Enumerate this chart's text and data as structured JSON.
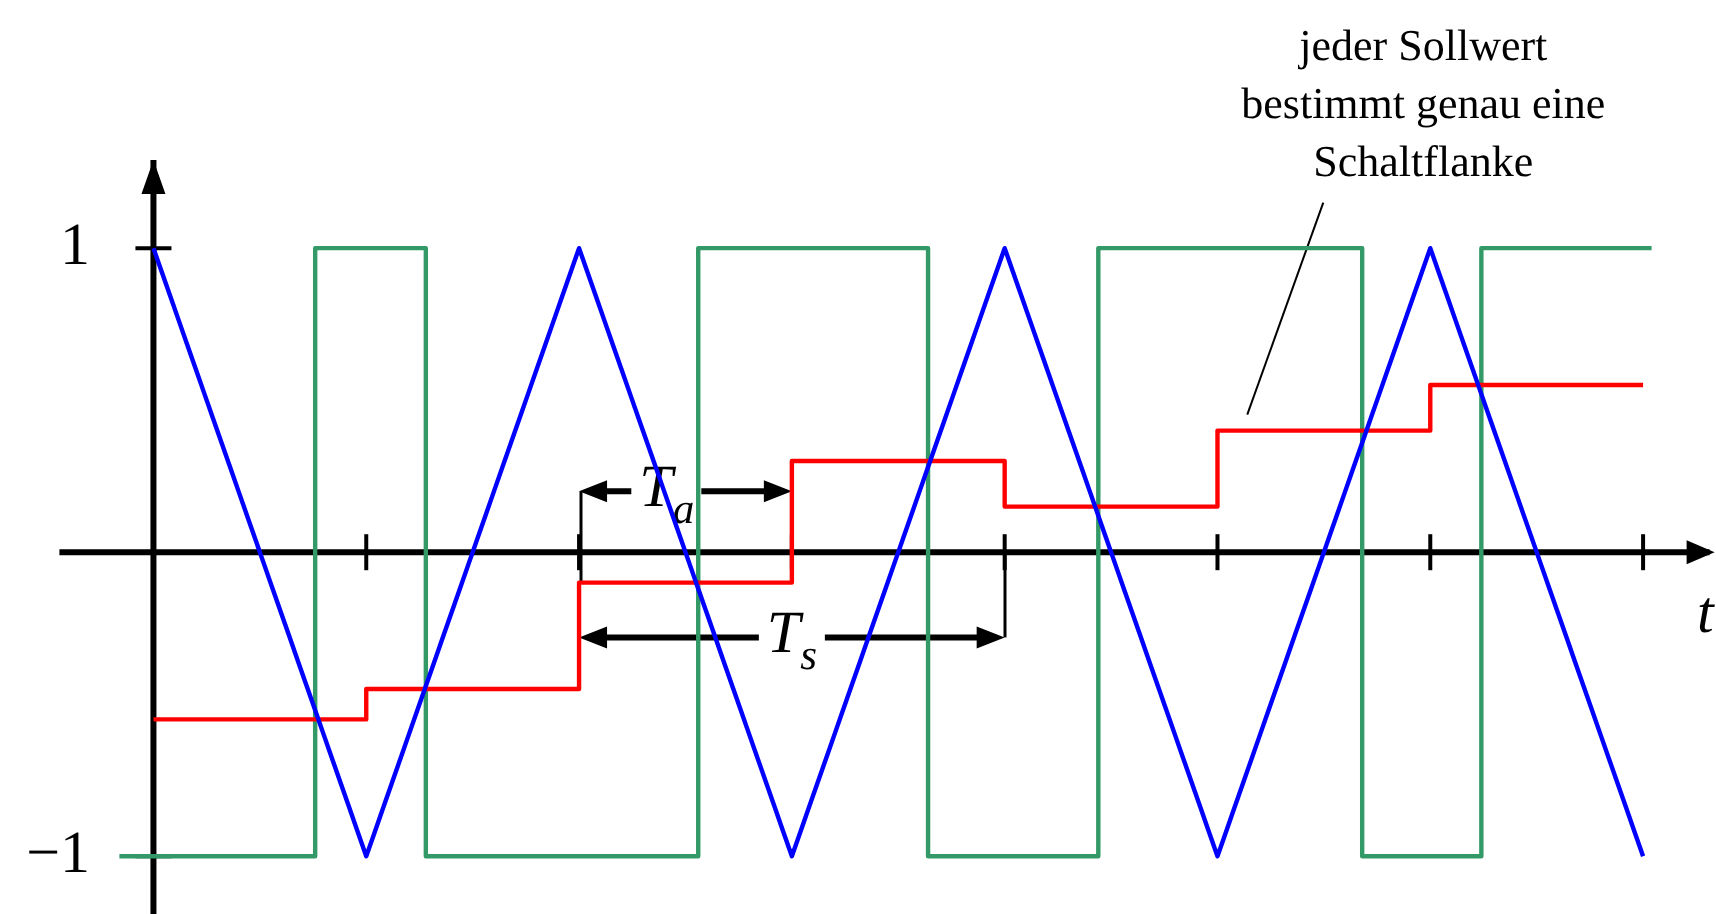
{
  "chart_data": {
    "type": "line",
    "xlabel": "t",
    "categories": [
      null,
      null,
      null,
      null,
      null,
      null,
      null,
      null,
      null,
      null,
      null,
      null,
      null,
      null,
      null,
      null,
      null,
      null,
      null,
      null,
      null,
      null,
      null,
      null,
      null,
      null,
      null,
      null,
      null,
      null,
      null,
      null,
      null,
      null,
      null,
      null,
      null,
      null,
      null,
      null,
      null,
      null,
      null,
      null,
      null,
      null,
      null,
      null,
      null,
      null,
      null,
      null,
      null,
      null,
      null,
      null,
      null,
      null,
      null,
      null,
      null,
      null,
      null,
      null,
      null,
      null,
      null,
      null,
      null,
      null,
      null,
      null,
      null,
      null,
      null,
      null,
      null,
      null,
      null,
      null,
      null,
      null,
      null,
      null,
      null,
      null,
      null,
      null,
      null,
      null,
      null,
      null,
      null,
      null,
      null,
      null,
      null,
      null,
      null,
      null,
      null,
      null,
      null,
      null,
      null,
      null,
      null,
      null,
      null,
      null,
      null,
      null,
      null,
      null,
      null,
      null,
      null,
      null,
      null,
      null,
      null,
      null,
      null,
      null,
      null,
      null,
      null,
      null,
      null,
      null,
      null,
      null,
      null,
      null,
      null,
      null,
      null,
      null,
      null,
      null,
      null,
      null,
      null,
      null,
      null,
      null,
      null,
      null,
      null,
      null,
      null,
      null,
      null,
      null,
      null,
      null,
      null,
      null,
      null,
      null,
      null,
      null,
      null,
      null,
      null,
      null,
      null,
      null,
      null,
      null,
      null,
      null,
      null,
      null,
      null,
      null,
      null,
      null,
      null,
      null,
      null
    ],
    "ylim": [
      -1.19,
      1.29
    ],
    "yticks": [
      1,
      {
        "value": -1,
        "label": "−1"
      }
    ],
    "series": [
      {
        "type": "line",
        "color": "#0000ff",
        "values": [
          null,
          null,
          null,
          null,
          1,
          0.92,
          0.84,
          0.76,
          0.68,
          0.6,
          0.52,
          0.44,
          0.36,
          0.28,
          0.2,
          0.12,
          0.04,
          -0.04,
          -0.12,
          -0.2,
          -0.28,
          -0.36,
          -0.44,
          -0.52,
          -0.6,
          -0.68,
          -0.76,
          -0.84,
          -0.92,
          -1,
          -0.92,
          -0.84,
          -0.76,
          -0.68,
          -0.6,
          -0.52,
          -0.44,
          -0.36,
          -0.28,
          -0.2,
          -0.12,
          -0.04,
          0.04,
          0.12,
          0.2,
          0.28,
          0.36,
          0.44,
          0.52,
          0.6,
          0.68,
          0.76,
          0.84,
          0.92,
          1,
          0.92,
          0.84,
          0.76,
          0.68,
          0.6,
          0.52,
          0.44,
          0.36,
          0.28,
          0.2,
          0.12,
          0.04,
          -0.04,
          -0.12,
          -0.2,
          -0.28,
          -0.36,
          -0.44,
          -0.52,
          -0.6,
          -0.68,
          -0.76,
          -0.84,
          -0.92,
          -1,
          -0.92,
          -0.84,
          -0.76,
          -0.68,
          -0.6,
          -0.52,
          -0.44,
          -0.36,
          -0.28,
          -0.2,
          -0.12,
          -0.04,
          0.04,
          0.12,
          0.2,
          0.28,
          0.36,
          0.44,
          0.52,
          0.6,
          0.68,
          0.76,
          0.84,
          0.92,
          1,
          0.92,
          0.84,
          0.76,
          0.68,
          0.6,
          0.52,
          0.44,
          0.36,
          0.28,
          0.2,
          0.12,
          0.04,
          -0.04,
          -0.12,
          -0.2,
          -0.28,
          -0.36,
          -0.44,
          -0.52,
          -0.6,
          -0.68,
          -0.76,
          -0.84,
          -0.92,
          -1,
          -0.92,
          -0.84,
          -0.76,
          -0.68,
          -0.6,
          -0.52,
          -0.44,
          -0.36,
          -0.28,
          -0.2,
          -0.12,
          -0.04,
          0.04,
          0.12,
          0.2,
          0.28,
          0.36,
          0.44,
          0.52,
          0.6,
          0.68,
          0.76,
          0.84,
          0.92,
          1,
          0.92,
          0.84,
          0.76,
          0.68,
          0.6,
          0.52,
          0.44,
          0.36,
          0.28,
          0.2,
          0.12,
          0.04,
          -0.04,
          -0.12,
          -0.2,
          -0.28,
          -0.36,
          -0.44,
          -0.52,
          -0.6,
          -0.68,
          -0.76,
          -0.84,
          -0.92,
          -1,
          null
        ]
      },
      {
        "type": "step",
        "color": "#ff0000",
        "values": [
          null,
          null,
          null,
          null,
          -0.55,
          -0.55,
          -0.55,
          -0.55,
          -0.55,
          -0.55,
          -0.55,
          -0.55,
          -0.55,
          -0.55,
          -0.55,
          -0.55,
          -0.55,
          -0.55,
          -0.55,
          -0.55,
          -0.55,
          -0.55,
          -0.55,
          -0.55,
          -0.55,
          -0.55,
          -0.55,
          -0.55,
          -0.55,
          -0.45,
          -0.45,
          -0.45,
          -0.45,
          -0.45,
          -0.45,
          -0.45,
          -0.45,
          -0.45,
          -0.45,
          -0.45,
          -0.45,
          -0.45,
          -0.45,
          -0.45,
          -0.45,
          -0.45,
          -0.45,
          -0.45,
          -0.45,
          -0.45,
          -0.45,
          -0.45,
          -0.45,
          -0.45,
          -0.1,
          -0.1,
          -0.1,
          -0.1,
          -0.1,
          -0.1,
          -0.1,
          -0.1,
          -0.1,
          -0.1,
          -0.1,
          -0.1,
          -0.1,
          -0.1,
          -0.1,
          -0.1,
          -0.1,
          -0.1,
          -0.1,
          -0.1,
          -0.1,
          -0.1,
          -0.1,
          -0.1,
          -0.1,
          0.3,
          0.3,
          0.3,
          0.3,
          0.3,
          0.3,
          0.3,
          0.3,
          0.3,
          0.3,
          0.3,
          0.3,
          0.3,
          0.3,
          0.3,
          0.3,
          0.3,
          0.3,
          0.3,
          0.3,
          0.3,
          0.3,
          0.3,
          0.3,
          0.3,
          0.15,
          0.15,
          0.15,
          0.15,
          0.15,
          0.15,
          0.15,
          0.15,
          0.15,
          0.15,
          0.15,
          0.15,
          0.15,
          0.15,
          0.15,
          0.15,
          0.15,
          0.15,
          0.15,
          0.15,
          0.15,
          0.15,
          0.15,
          0.15,
          0.15,
          0.4,
          0.4,
          0.4,
          0.4,
          0.4,
          0.4,
          0.4,
          0.4,
          0.4,
          0.4,
          0.4,
          0.4,
          0.4,
          0.4,
          0.4,
          0.4,
          0.4,
          0.4,
          0.4,
          0.4,
          0.4,
          0.4,
          0.4,
          0.4,
          0.4,
          0.55,
          0.55,
          0.55,
          0.55,
          0.55,
          0.55,
          0.55,
          0.55,
          0.55,
          0.55,
          0.55,
          0.55,
          0.55,
          0.55,
          0.55,
          0.55,
          0.55,
          0.55,
          0.55,
          0.55,
          0.55,
          0.55,
          0.55,
          0.55,
          0.55,
          0.55,
          null
        ]
      },
      {
        "type": "step",
        "color": "#339966",
        "values": [
          -1,
          -1,
          -1,
          -1,
          -1,
          -1,
          -1,
          -1,
          -1,
          -1,
          -1,
          -1,
          -1,
          -1,
          -1,
          -1,
          -1,
          -1,
          -1,
          -1,
          -1,
          -1,
          -1,
          1,
          1,
          1,
          1,
          1,
          1,
          1,
          1,
          1,
          1,
          1,
          1,
          1,
          -1,
          -1,
          -1,
          -1,
          -1,
          -1,
          -1,
          -1,
          -1,
          -1,
          -1,
          -1,
          -1,
          -1,
          -1,
          -1,
          -1,
          -1,
          -1,
          -1,
          -1,
          -1,
          -1,
          -1,
          -1,
          -1,
          -1,
          -1,
          -1,
          -1,
          -1,
          -1,
          1,
          1,
          1,
          1,
          1,
          1,
          1,
          1,
          1,
          1,
          1,
          1,
          1,
          1,
          1,
          1,
          1,
          1,
          1,
          1,
          1,
          1,
          1,
          1,
          1,
          1,
          1,
          -1,
          -1,
          -1,
          -1,
          -1,
          -1,
          -1,
          -1,
          -1,
          -1,
          -1,
          -1,
          -1,
          -1,
          -1,
          -1,
          -1,
          -1,
          -1,
          -1,
          1,
          1,
          1,
          1,
          1,
          1,
          1,
          1,
          1,
          1,
          1,
          1,
          1,
          1,
          1,
          1,
          1,
          1,
          1,
          1,
          1,
          1,
          1,
          1,
          1,
          1,
          1,
          1,
          1,
          1,
          1,
          -1,
          -1,
          -1,
          -1,
          -1,
          -1,
          -1,
          -1,
          -1,
          -1,
          -1,
          -1,
          -1,
          -1,
          1,
          1,
          1,
          1,
          1,
          1,
          1,
          1,
          1,
          1,
          1,
          1,
          1,
          1,
          1,
          1,
          1,
          1,
          1,
          1,
          1
        ]
      }
    ],
    "annotations": [
      "T$_{a}$",
      "T$_{s}$",
      "jeder Sollwert\nbestimmt genau eine\nSchaltflanke"
    ]
  }
}
